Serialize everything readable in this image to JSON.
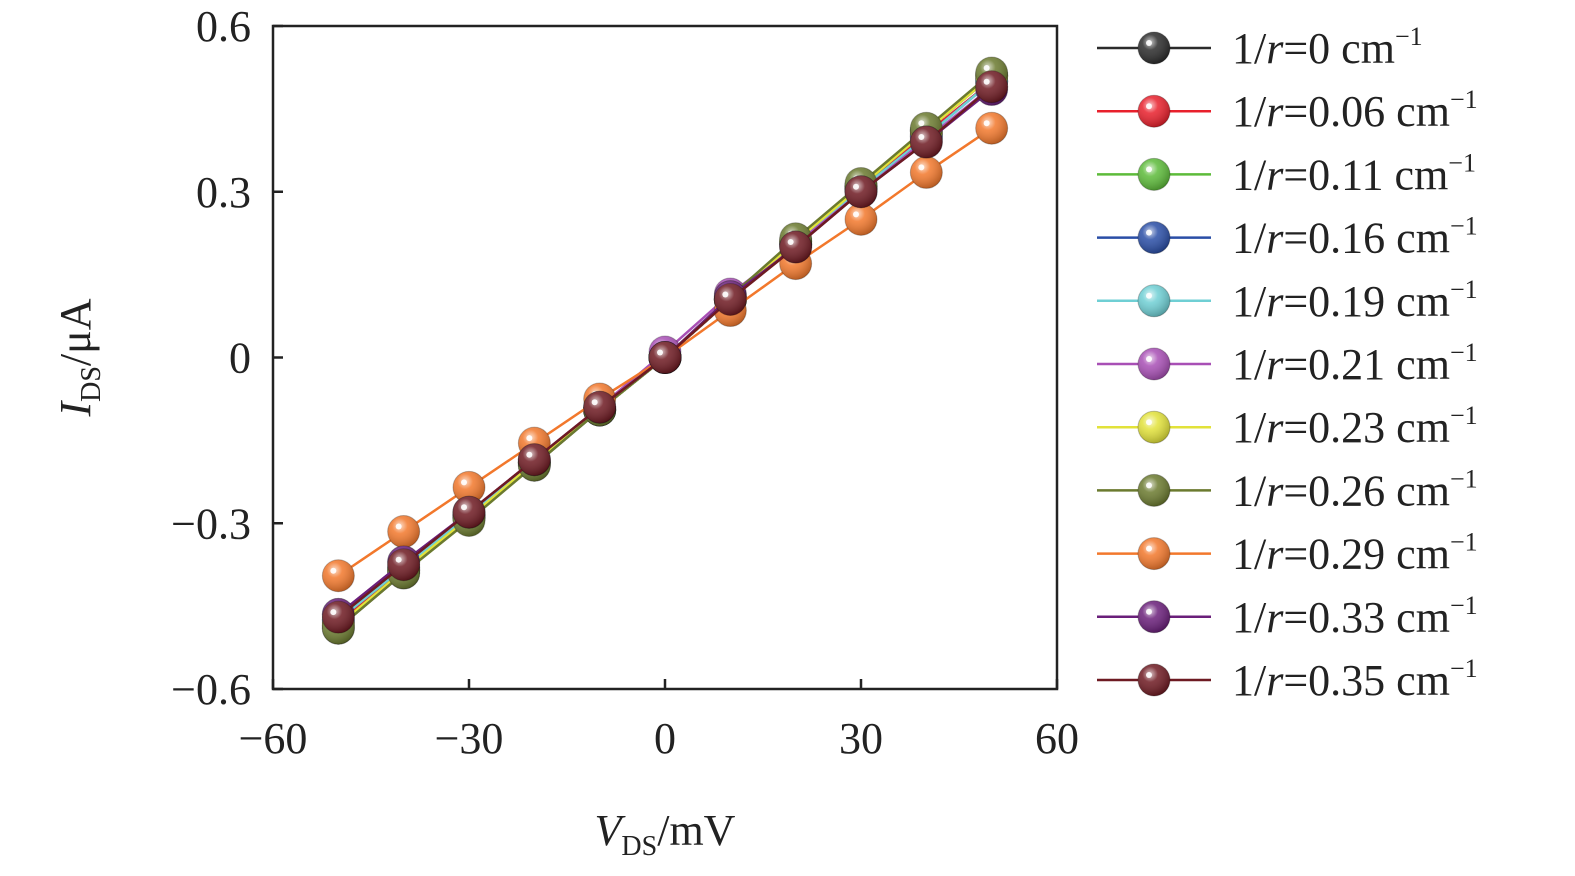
{
  "chart_data": {
    "type": "line",
    "title": "",
    "xlabel": {
      "main": "V",
      "sub": "DS",
      "unit": "/mV"
    },
    "ylabel": {
      "main": "I",
      "sub": "DS",
      "unit": "/μA"
    },
    "xlim": [
      -60,
      60
    ],
    "ylim": [
      -0.6,
      0.6
    ],
    "xticks": [
      -60,
      -30,
      0,
      30,
      60
    ],
    "xtick_labels": [
      "−60",
      "−30",
      "0",
      "30",
      "60"
    ],
    "yticks": [
      -0.6,
      -0.3,
      0,
      0.3,
      0.6
    ],
    "ytick_labels": [
      "−0.6",
      "−0.3",
      "0",
      "0.3",
      "0.6"
    ],
    "grid": false,
    "legend_position": "right",
    "x": [
      -50,
      -40,
      -30,
      -20,
      -10,
      0,
      10,
      20,
      30,
      40,
      50
    ],
    "series": [
      {
        "name": "1/r=0 cm−1",
        "label_prefix": "1/",
        "label_var": "r",
        "label_value": "=0 cm",
        "label_sup": "−1",
        "color": "#2b2b2b",
        "values": [
          -0.49,
          -0.39,
          -0.29,
          -0.195,
          -0.095,
          0.0,
          0.105,
          0.21,
          0.31,
          0.41,
          0.51
        ]
      },
      {
        "name": "1/r=0.06 cm−1",
        "label_prefix": "1/",
        "label_var": "r",
        "label_value": "=0.06 cm",
        "label_sup": "−1",
        "color": "#e8202c",
        "values": [
          -0.48,
          -0.385,
          -0.285,
          -0.19,
          -0.095,
          0.0,
          0.105,
          0.205,
          0.305,
          0.405,
          0.5
        ]
      },
      {
        "name": "1/r=0.11 cm−1",
        "label_prefix": "1/",
        "label_var": "r",
        "label_value": "=0.11 cm",
        "label_sup": "−1",
        "color": "#5dbb3a",
        "values": [
          -0.485,
          -0.385,
          -0.29,
          -0.19,
          -0.095,
          0.0,
          0.105,
          0.21,
          0.31,
          0.41,
          0.51
        ]
      },
      {
        "name": "1/r=0.16 cm−1",
        "label_prefix": "1/",
        "label_var": "r",
        "label_value": "=0.16 cm",
        "label_sup": "−1",
        "color": "#2a4ea6",
        "values": [
          -0.475,
          -0.38,
          -0.285,
          -0.19,
          -0.095,
          0.0,
          0.105,
          0.205,
          0.305,
          0.4,
          0.5
        ]
      },
      {
        "name": "1/r=0.19 cm−1",
        "label_prefix": "1/",
        "label_var": "r",
        "label_value": "=0.19 cm",
        "label_sup": "−1",
        "color": "#6fcfd4",
        "values": [
          -0.475,
          -0.38,
          -0.285,
          -0.19,
          -0.095,
          0.0,
          0.105,
          0.205,
          0.305,
          0.4,
          0.5
        ]
      },
      {
        "name": "1/r=0.21 cm−1",
        "label_prefix": "1/",
        "label_var": "r",
        "label_value": "=0.21 cm",
        "label_sup": "−1",
        "color": "#a84fb5",
        "values": [
          -0.465,
          -0.37,
          -0.28,
          -0.185,
          -0.09,
          0.01,
          0.115,
          0.205,
          0.3,
          0.395,
          0.49
        ]
      },
      {
        "name": "1/r=0.23 cm−1",
        "label_prefix": "1/",
        "label_var": "r",
        "label_value": "=0.23 cm",
        "label_sup": "−1",
        "color": "#e2e23a",
        "values": [
          -0.485,
          -0.385,
          -0.29,
          -0.19,
          -0.095,
          0.0,
          0.105,
          0.21,
          0.31,
          0.41,
          0.51
        ]
      },
      {
        "name": "1/r=0.26 cm−1",
        "label_prefix": "1/",
        "label_var": "r",
        "label_value": "=0.26 cm",
        "label_sup": "−1",
        "color": "#6b7a2f",
        "values": [
          -0.49,
          -0.39,
          -0.295,
          -0.195,
          -0.095,
          0.0,
          0.11,
          0.215,
          0.315,
          0.415,
          0.515
        ]
      },
      {
        "name": "1/r=0.29 cm−1",
        "label_prefix": "1/",
        "label_var": "r",
        "label_value": "=0.29 cm",
        "label_sup": "−1",
        "color": "#f2782c",
        "values": [
          -0.395,
          -0.315,
          -0.235,
          -0.155,
          -0.075,
          0.0,
          0.085,
          0.17,
          0.25,
          0.335,
          0.415
        ]
      },
      {
        "name": "1/r=0.33 cm−1",
        "label_prefix": "1/",
        "label_var": "r",
        "label_value": "=0.33 cm",
        "label_sup": "−1",
        "color": "#6a1f7a",
        "values": [
          -0.465,
          -0.37,
          -0.28,
          -0.185,
          -0.09,
          0.0,
          0.11,
          0.2,
          0.3,
          0.39,
          0.485
        ]
      },
      {
        "name": "1/r=0.35 cm−1",
        "label_prefix": "1/",
        "label_var": "r",
        "label_value": "=0.35 cm",
        "label_sup": "−1",
        "color": "#6e1a22",
        "values": [
          -0.47,
          -0.375,
          -0.28,
          -0.185,
          -0.09,
          0.0,
          0.105,
          0.2,
          0.3,
          0.39,
          0.49
        ]
      }
    ]
  }
}
